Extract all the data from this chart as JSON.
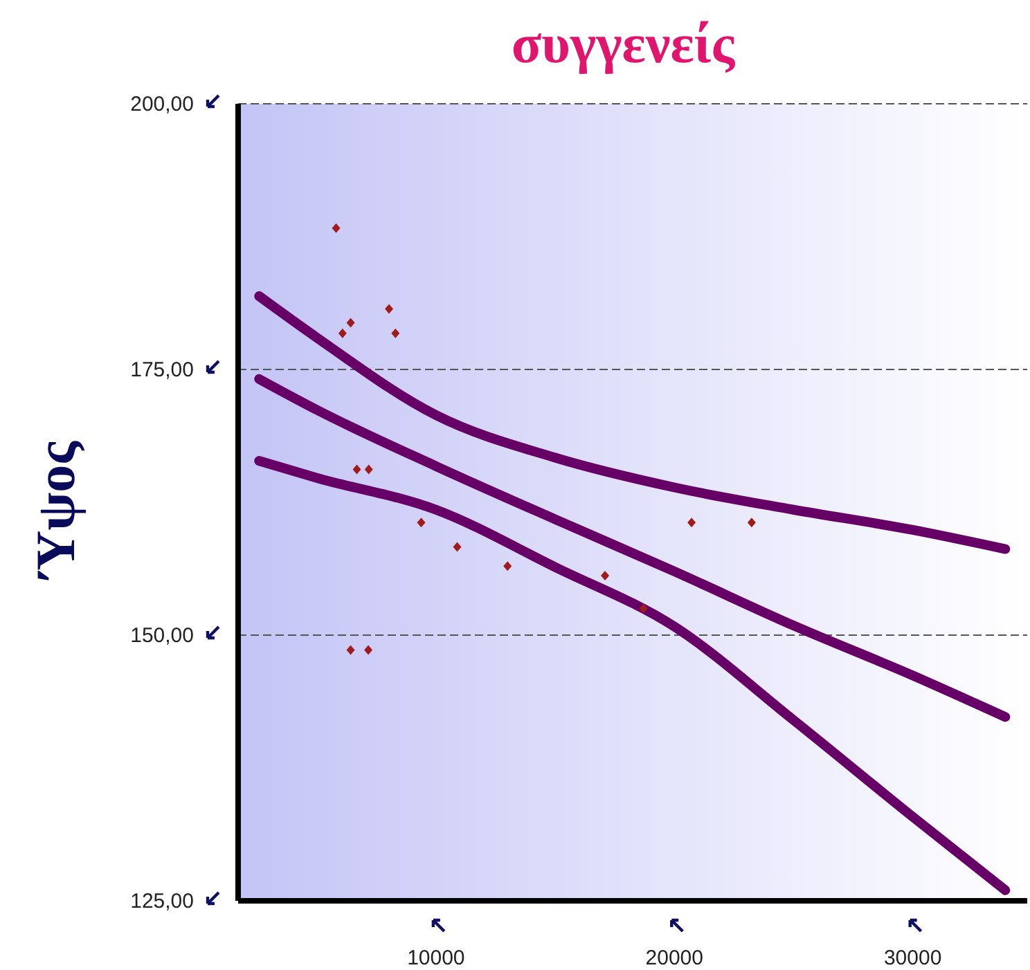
{
  "chart_data": {
    "type": "scatter",
    "title": "συγγενείς",
    "ylabel": "Ύψος",
    "xlim": [
      1700,
      34800
    ],
    "xticks": [
      10000,
      20000,
      30000
    ],
    "ylim": [
      125,
      200
    ],
    "yticks": [
      {
        "value": 125,
        "label": "125,00"
      },
      {
        "value": 150,
        "label": "150,00"
      },
      {
        "value": 175,
        "label": "175,00"
      },
      {
        "value": 200,
        "label": "200,00"
      }
    ],
    "grid": "y",
    "series": [
      {
        "type": "scatter",
        "color": "#a01c1c",
        "marker": "diamond",
        "x": [
          5810,
          6420,
          6080,
          8030,
          8300,
          6680,
          7180,
          9380,
          10890,
          13000,
          6420,
          7160,
          20720,
          23240,
          17090,
          18700
        ],
        "values": [
          188.3,
          179.4,
          178.4,
          180.7,
          178.4,
          165.6,
          165.6,
          160.6,
          158.3,
          156.5,
          148.6,
          148.6,
          160.6,
          160.6,
          155.6,
          152.5
        ]
      },
      {
        "type": "line",
        "color": "#660066",
        "marker": "none",
        "x": [
          2580,
          5000,
          10000,
          15000,
          20000,
          25000,
          30000,
          33880
        ],
        "values": [
          181.9,
          178.0,
          170.7,
          166.7,
          163.9,
          161.8,
          159.9,
          158.1
        ]
      },
      {
        "type": "line",
        "color": "#660066",
        "marker": "none",
        "x": [
          2580,
          5000,
          10000,
          15000,
          20000,
          25000,
          30000,
          33880
        ],
        "values": [
          174.1,
          171.2,
          165.9,
          160.9,
          156.0,
          150.9,
          146.2,
          142.3
        ]
      },
      {
        "type": "line",
        "color": "#660066",
        "marker": "none",
        "x": [
          2580,
          5000,
          10000,
          15000,
          20000,
          25000,
          30000,
          33880
        ],
        "values": [
          166.4,
          164.8,
          161.8,
          156.4,
          150.8,
          142.0,
          132.9,
          126.0
        ]
      }
    ]
  }
}
